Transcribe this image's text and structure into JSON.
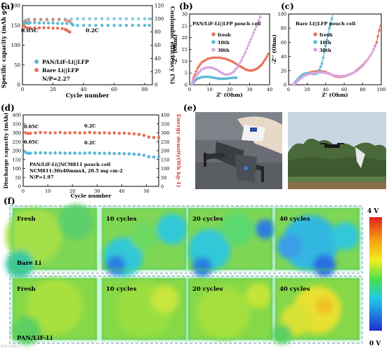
{
  "figure": {
    "panel_labels": [
      "(a)",
      "(b)",
      "(c)",
      "(d)",
      "(e)",
      "(f)"
    ],
    "watermark": "www.kt...",
    "colormap": {
      "max_label": "4 V",
      "min_label": "0 V"
    },
    "heatmap_rows": [
      {
        "series_label": "Bare Li",
        "tiles": [
          "Fresh",
          "10 cycles",
          "20 cycles",
          "40 cycles"
        ]
      },
      {
        "series_label": "PAN/LiF-Li",
        "tiles": [
          "Fresh",
          "10 cycles",
          "20 cycles",
          "40 cycles"
        ]
      }
    ],
    "colors": {
      "bare": "#e8735a",
      "pan": "#5bb8d6",
      "purple": "#d8a8e0",
      "frame": "#8ea2c4"
    }
  },
  "chart_data": [
    {
      "id": "a",
      "type": "scatter",
      "xlabel": "Cycle number",
      "ylabel": "Specific capacity (mAh g-1)",
      "y2label": "Coulombic efficiency (%)",
      "xlim": [
        0,
        85
      ],
      "ylim": [
        0,
        200
      ],
      "y2lim": [
        0,
        120
      ],
      "xticks": [
        0,
        20,
        40,
        60,
        80
      ],
      "yticks": [
        0,
        50,
        100,
        150,
        200
      ],
      "y2ticks": [
        0,
        20,
        40,
        60,
        80,
        100,
        120
      ],
      "annotations": [
        "0.05C",
        "0.2C"
      ],
      "legend": [
        "PAN/LiF-Li||LFP",
        "Bare Li||LFP"
      ],
      "note": "N/P=2.27",
      "series": [
        {
          "name": "PAN/LiF-Li||LFP",
          "role": "capacity",
          "points": [
            [
              1,
              158
            ],
            [
              2,
              157
            ],
            [
              3,
              156
            ],
            [
              4,
              155
            ],
            [
              5,
              157
            ],
            [
              8,
              157
            ],
            [
              11,
              156
            ],
            [
              14,
              156
            ],
            [
              17,
              156
            ],
            [
              20,
              156
            ],
            [
              23,
              155
            ],
            [
              26,
              155
            ],
            [
              29,
              155
            ],
            [
              32,
              155
            ],
            [
              33,
              151
            ],
            [
              36,
              150
            ],
            [
              40,
              150
            ],
            [
              44,
              150
            ],
            [
              48,
              150
            ],
            [
              52,
              150
            ],
            [
              56,
              150
            ],
            [
              60,
              150
            ],
            [
              64,
              150
            ],
            [
              68,
              150
            ],
            [
              72,
              150
            ],
            [
              76,
              150
            ],
            [
              80,
              150
            ],
            [
              83,
              150
            ]
          ]
        },
        {
          "name": "Bare Li||LFP",
          "role": "capacity",
          "points": [
            [
              1,
              150
            ],
            [
              2,
              145
            ],
            [
              3,
              144
            ],
            [
              5,
              144
            ],
            [
              8,
              144
            ],
            [
              11,
              144
            ],
            [
              14,
              144
            ],
            [
              17,
              144
            ],
            [
              20,
              143
            ],
            [
              23,
              143
            ],
            [
              26,
              142
            ],
            [
              28,
              140
            ],
            [
              29,
              138
            ],
            [
              30,
              135
            ],
            [
              31,
              133
            ]
          ]
        },
        {
          "name": "PAN/LiF-Li||LFP",
          "role": "efficiency",
          "points": [
            [
              1,
              93
            ],
            [
              2,
              98
            ],
            [
              4,
              99.5
            ],
            [
              8,
              99.5
            ],
            [
              12,
              99.5
            ],
            [
              16,
              99.5
            ],
            [
              20,
              99.5
            ],
            [
              24,
              99.5
            ],
            [
              28,
              99.5
            ],
            [
              32,
              99.5
            ],
            [
              36,
              100
            ],
            [
              40,
              100
            ],
            [
              44,
              100
            ],
            [
              48,
              100
            ],
            [
              52,
              100
            ],
            [
              56,
              100
            ],
            [
              60,
              100
            ],
            [
              64,
              100
            ],
            [
              68,
              100
            ],
            [
              72,
              100
            ],
            [
              76,
              100
            ],
            [
              80,
              100
            ],
            [
              83,
              100
            ]
          ]
        },
        {
          "name": "Bare Li||LFP",
          "role": "efficiency",
          "points": [
            [
              1,
              90
            ],
            [
              2,
              96
            ],
            [
              4,
              98
            ],
            [
              8,
              98.5
            ],
            [
              12,
              98.5
            ],
            [
              16,
              98.5
            ],
            [
              20,
              98.5
            ],
            [
              24,
              98.5
            ],
            [
              28,
              98
            ],
            [
              30,
              97
            ],
            [
              31,
              96
            ]
          ]
        }
      ]
    },
    {
      "id": "b",
      "type": "line",
      "title": "PAN/LiF-Li||LFP pouch cell",
      "xlabel": "Z' (Ohm)",
      "ylabel": "-Z'' (Ohm)",
      "xlim": [
        0,
        40
      ],
      "ylim": [
        0,
        30
      ],
      "xticks": [
        0,
        10,
        20,
        30,
        40
      ],
      "yticks": [
        0,
        5,
        10,
        15,
        20,
        25,
        30
      ],
      "legend": [
        "fresh",
        "10th",
        "30th"
      ],
      "series": [
        {
          "name": "fresh",
          "x": [
            1,
            2,
            4,
            6,
            9,
            12,
            15,
            18,
            21,
            24,
            26,
            28,
            30,
            32,
            34,
            36,
            38,
            40
          ],
          "y": [
            0,
            3,
            7,
            9.5,
            11,
            11.5,
            11.5,
            11,
            10,
            8.5,
            7.5,
            6.5,
            6,
            6.2,
            7,
            8.5,
            11,
            14
          ]
        },
        {
          "name": "10th",
          "x": [
            1,
            2,
            3,
            4,
            6,
            8,
            10,
            12,
            14,
            16,
            18,
            20,
            22,
            24
          ],
          "y": [
            0,
            1,
            2,
            2.6,
            3.2,
            3.4,
            3.3,
            3,
            2.7,
            2.5,
            2.6,
            2.8,
            3,
            3
          ]
        },
        {
          "name": "30th",
          "x": [
            1,
            2,
            4,
            6,
            8,
            10,
            12,
            14,
            16,
            18,
            20,
            22,
            24,
            26,
            28,
            30,
            32,
            34,
            36
          ],
          "y": [
            0,
            2,
            4.5,
            6.5,
            7.2,
            7.4,
            7,
            6.2,
            5,
            4.3,
            4.5,
            5.5,
            7.5,
            10.5,
            14,
            18,
            22,
            26,
            30
          ]
        }
      ]
    },
    {
      "id": "c",
      "type": "line",
      "title": "Bare Li||LFP pouch cell",
      "xlabel": "Z' (Ohm)",
      "ylabel": "-Z'' (Ohm)",
      "xlim": [
        0,
        100
      ],
      "ylim": [
        0,
        100
      ],
      "xticks": [
        0,
        20,
        40,
        60,
        80,
        100
      ],
      "yticks": [
        0,
        20,
        40,
        60,
        80,
        100
      ],
      "legend": [
        "fresh",
        "10th",
        "30th"
      ],
      "series": [
        {
          "name": "fresh",
          "x": [
            5,
            8,
            12,
            16,
            20,
            25,
            30,
            35,
            40,
            45,
            50,
            55,
            60,
            65,
            70,
            75,
            80,
            85,
            90,
            95,
            99
          ],
          "y": [
            0,
            4,
            9,
            13,
            16,
            18,
            19,
            19,
            18,
            15,
            12,
            11,
            12,
            14,
            17,
            22,
            28,
            35,
            45,
            60,
            85
          ]
        },
        {
          "name": "10th",
          "x": [
            5,
            8,
            12,
            16,
            20,
            24,
            28,
            32,
            36,
            40,
            44,
            48
          ],
          "y": [
            0,
            5,
            11,
            15,
            16.5,
            16,
            15,
            17,
            30,
            55,
            80,
            100
          ]
        },
        {
          "name": "30th",
          "x": [
            5,
            8,
            12,
            16,
            20,
            25,
            30,
            35,
            40,
            45,
            50,
            55,
            60,
            65,
            70,
            75,
            80,
            85,
            90,
            95
          ],
          "y": [
            0,
            3,
            8,
            12,
            14.5,
            16,
            17,
            17.5,
            17,
            15,
            13,
            12,
            12.5,
            14,
            17,
            21,
            27,
            35,
            45,
            58
          ]
        }
      ]
    },
    {
      "id": "d",
      "type": "scatter",
      "xlabel": "Cycle number",
      "ylabel": "Discharge capacity (mAh)",
      "y2label": "Energy density(Wh kg-1)",
      "xlim": [
        0,
        55
      ],
      "ylim": [
        0,
        400
      ],
      "y2lim": [
        0,
        400
      ],
      "xticks": [
        0,
        10,
        20,
        30,
        40,
        50
      ],
      "yticks": [
        0,
        50,
        100,
        150,
        200,
        250,
        300,
        350,
        400
      ],
      "y2ticks": [
        0,
        50,
        100,
        150,
        200,
        250,
        300,
        350,
        400
      ],
      "annotations": [
        "0.05C",
        "0.2C",
        "0.05C",
        "0.2C"
      ],
      "note": [
        "PAN/LiF-Li||NCM811 pouch cell",
        "NCM811:30x40mmx4, 20.5 mg cm-2",
        "N/P=1.97"
      ],
      "series": [
        {
          "name": "Energy density",
          "axis": "y2",
          "points": [
            [
              1,
              300
            ],
            [
              2,
              296
            ],
            [
              3,
              297
            ],
            [
              5,
              300
            ],
            [
              7,
              302
            ],
            [
              9,
              301
            ],
            [
              11,
              299
            ],
            [
              13,
              300
            ],
            [
              15,
              302
            ],
            [
              17,
              299
            ],
            [
              19,
              300
            ],
            [
              21,
              301
            ],
            [
              23,
              299
            ],
            [
              25,
              300
            ],
            [
              27,
              302
            ],
            [
              29,
              300
            ],
            [
              31,
              299
            ],
            [
              33,
              300
            ],
            [
              35,
              298
            ],
            [
              37,
              299
            ],
            [
              39,
              297
            ],
            [
              41,
              298
            ],
            [
              43,
              296
            ],
            [
              45,
              294
            ],
            [
              47,
              291
            ],
            [
              49,
              286
            ],
            [
              51,
              276
            ],
            [
              53,
              274
            ],
            [
              55,
              274
            ]
          ]
        },
        {
          "name": "Discharge capacity",
          "axis": "y",
          "points": [
            [
              1,
              190
            ],
            [
              2,
              185
            ],
            [
              3,
              186
            ],
            [
              5,
              187
            ],
            [
              7,
              188
            ],
            [
              9,
              187
            ],
            [
              11,
              186
            ],
            [
              13,
              187
            ],
            [
              15,
              187
            ],
            [
              17,
              186
            ],
            [
              19,
              186
            ],
            [
              21,
              186
            ],
            [
              23,
              185
            ],
            [
              25,
              186
            ],
            [
              27,
              187
            ],
            [
              29,
              186
            ],
            [
              31,
              185
            ],
            [
              33,
              185
            ],
            [
              35,
              185
            ],
            [
              37,
              184
            ],
            [
              39,
              184
            ],
            [
              41,
              183
            ],
            [
              43,
              182
            ],
            [
              45,
              180
            ],
            [
              47,
              178
            ],
            [
              49,
              174
            ],
            [
              51,
              166
            ],
            [
              53,
              164
            ],
            [
              55,
              164
            ]
          ]
        }
      ]
    }
  ]
}
